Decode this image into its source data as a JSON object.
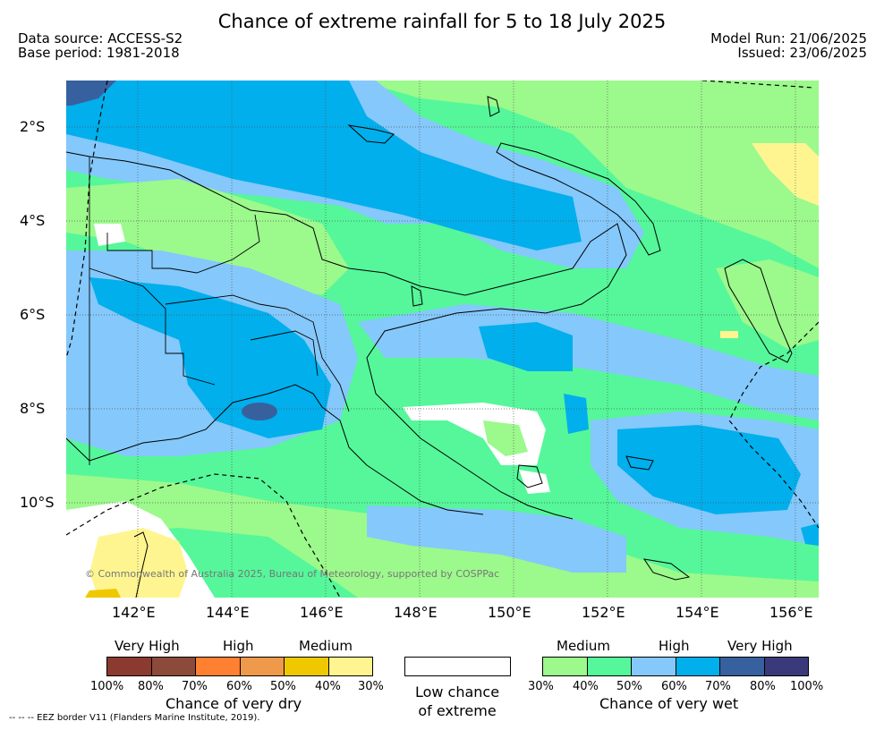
{
  "title": "Chance of extreme rainfall for 5 to 18 July 2025",
  "data_source": "Data source: ACCESS-S2",
  "base_period": "Base period: 1981-2018",
  "model_run": "Model Run: 21/06/2025",
  "issued": "Issued: 23/06/2025",
  "copyright": "© Commonwealth of Australia 2025, Bureau of Meteorology, supported by COSPPac",
  "lat_labels": [
    "2°S",
    "4°S",
    "6°S",
    "8°S",
    "10°S"
  ],
  "lon_labels": [
    "142°E",
    "144°E",
    "146°E",
    "148°E",
    "150°E",
    "152°E",
    "154°E",
    "156°E"
  ],
  "legend": {
    "dry_headers": [
      "Very High",
      "High",
      "Medium"
    ],
    "dry_ticks": [
      "100%",
      "80%",
      "70%",
      "60%",
      "50%",
      "40%",
      "30%"
    ],
    "dry_caption": "Chance of very dry",
    "dry_colors": [
      "#8b3a2f",
      "#8b4a3a",
      "#ff8030",
      "#ee9a4a",
      "#f0c800",
      "#fff590"
    ],
    "low_chance_line1": "Low chance",
    "low_chance_line2": "of extreme",
    "wet_headers": [
      "Medium",
      "High",
      "Very High"
    ],
    "wet_ticks": [
      "30%",
      "40%",
      "50%",
      "60%",
      "70%",
      "80%",
      "100%"
    ],
    "wet_caption": "Chance of very wet",
    "wet_colors": [
      "#9cf98c",
      "#55f79a",
      "#85c8fb",
      "#00afec",
      "#37619e",
      "#3a3a7a"
    ]
  },
  "eez_note": "--  --  -- EEZ border V11 (Flanders Marine Institute, 2019)."
}
